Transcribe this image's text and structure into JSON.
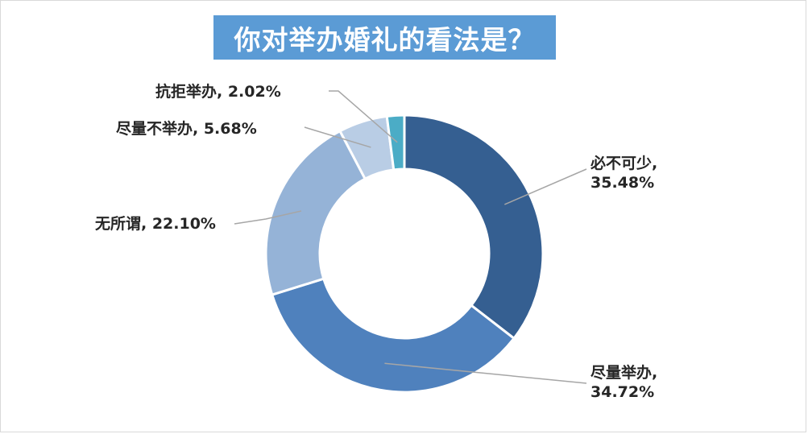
{
  "chart_data": {
    "type": "pie",
    "title": "你对举办婚礼的看法是？",
    "donut": true,
    "slices": [
      {
        "label": "必不可少",
        "value": 35.48,
        "value_text": "35.48%",
        "color": "#355f91"
      },
      {
        "label": "尽量举办",
        "value": 34.72,
        "value_text": "34.72%",
        "color": "#4f81bd"
      },
      {
        "label": "无所谓",
        "value": 22.1,
        "value_text": "22.10%",
        "color": "#95b3d7"
      },
      {
        "label": "尽量不举办",
        "value": 5.68,
        "value_text": "5.68%",
        "color": "#b9cde5"
      },
      {
        "label": "抗拒举办",
        "value": 2.02,
        "value_text": "2.02%",
        "color": "#4bacc6"
      }
    ],
    "legend": "none"
  },
  "labels": {
    "s0_name": "必不可少,",
    "s0_value": "35.48%",
    "s1_name": "尽量举办,",
    "s1_value": "34.72%",
    "s2": "无所谓, 22.10%",
    "s3": "尽量不举办, 5.68%",
    "s4": "抗拒举办, 2.02%"
  }
}
